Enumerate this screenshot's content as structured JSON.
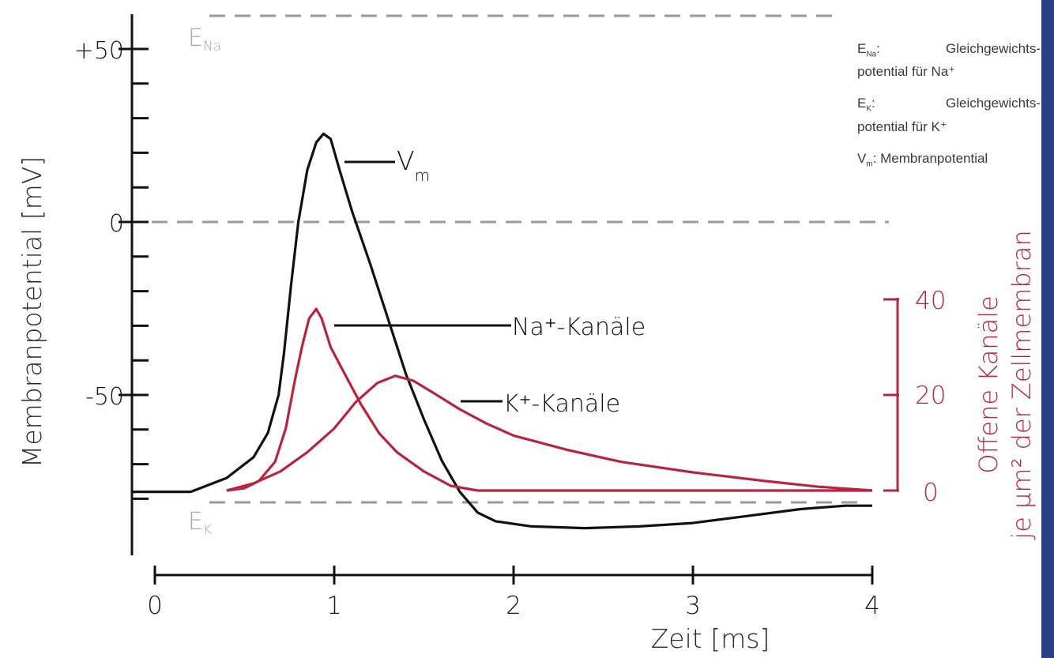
{
  "chart_data": {
    "type": "line",
    "xlabel": "Zeit [ms]",
    "ylabel": "Membranpotential [mV]",
    "y2label_line1": "Offene Kanäle",
    "y2label_line2": "je µm² der Zellmembran",
    "x_ticks": [
      "0",
      "1",
      "2",
      "3",
      "4"
    ],
    "y_ticks": [
      "+50",
      "0",
      "-50"
    ],
    "y2_ticks": [
      "40",
      "20",
      "0"
    ],
    "xlim": [
      0,
      4
    ],
    "ylim": [
      -95,
      60
    ],
    "y2lim": [
      0,
      40
    ],
    "reference_lines": [
      {
        "name": "E_Na",
        "label_main": "E",
        "label_sub": "Na",
        "value": 59
      },
      {
        "name": "zero",
        "value": 0
      },
      {
        "name": "E_K",
        "label_main": "E",
        "label_sub": "K",
        "value": -81
      }
    ],
    "series": [
      {
        "name": "Vm",
        "label_main": "V",
        "label_sub": "m",
        "axis": "left",
        "color": "#111111",
        "points": [
          [
            -0.13,
            -78
          ],
          [
            0.2,
            -78
          ],
          [
            0.4,
            -74
          ],
          [
            0.55,
            -68
          ],
          [
            0.63,
            -61
          ],
          [
            0.69,
            -50
          ],
          [
            0.72,
            -38
          ],
          [
            0.76,
            -18
          ],
          [
            0.8,
            0
          ],
          [
            0.85,
            15
          ],
          [
            0.9,
            23
          ],
          [
            0.94,
            25.5
          ],
          [
            0.98,
            24
          ],
          [
            1.03,
            15
          ],
          [
            1.1,
            3
          ],
          [
            1.2,
            -12
          ],
          [
            1.3,
            -28
          ],
          [
            1.4,
            -44
          ],
          [
            1.5,
            -57
          ],
          [
            1.6,
            -69
          ],
          [
            1.7,
            -78
          ],
          [
            1.8,
            -84
          ],
          [
            1.9,
            -86.5
          ],
          [
            2.1,
            -88
          ],
          [
            2.4,
            -88.5
          ],
          [
            2.7,
            -88
          ],
          [
            3.0,
            -87
          ],
          [
            3.3,
            -85
          ],
          [
            3.6,
            -83
          ],
          [
            3.85,
            -82
          ],
          [
            4.0,
            -82
          ]
        ]
      },
      {
        "name": "Na-Kanäle",
        "label": "Na⁺-Kanäle",
        "axis": "right",
        "color": "#b8243f",
        "points": [
          [
            0.4,
            0
          ],
          [
            0.5,
            0.5
          ],
          [
            0.58,
            2
          ],
          [
            0.67,
            6
          ],
          [
            0.73,
            13
          ],
          [
            0.78,
            23
          ],
          [
            0.82,
            30
          ],
          [
            0.86,
            36
          ],
          [
            0.9,
            38
          ],
          [
            0.93,
            36
          ],
          [
            0.98,
            30
          ],
          [
            1.05,
            25
          ],
          [
            1.15,
            18
          ],
          [
            1.25,
            12
          ],
          [
            1.35,
            8
          ],
          [
            1.5,
            4
          ],
          [
            1.65,
            1
          ],
          [
            1.8,
            0
          ],
          [
            2.5,
            0
          ],
          [
            4.0,
            0
          ]
        ]
      },
      {
        "name": "K-Kanäle",
        "label": "K⁺-Kanäle",
        "axis": "right",
        "color": "#b8243f",
        "points": [
          [
            0.4,
            0
          ],
          [
            0.55,
            1.5
          ],
          [
            0.7,
            4
          ],
          [
            0.85,
            8
          ],
          [
            1.0,
            13
          ],
          [
            1.12,
            18.5
          ],
          [
            1.24,
            22.5
          ],
          [
            1.34,
            24
          ],
          [
            1.44,
            23
          ],
          [
            1.55,
            20.5
          ],
          [
            1.7,
            17
          ],
          [
            1.85,
            14
          ],
          [
            2.0,
            11.5
          ],
          [
            2.3,
            8.5
          ],
          [
            2.6,
            6
          ],
          [
            3.0,
            3.8
          ],
          [
            3.4,
            2
          ],
          [
            3.7,
            0.8
          ],
          [
            4.0,
            0
          ]
        ]
      }
    ]
  },
  "legend": {
    "ena_main": "E",
    "ena_sub": "Na",
    "ena_sep": ":",
    "ena_text1": "Gleichgewichts-",
    "ena_text2": "potential für Na⁺",
    "ek_main": "E",
    "ek_sub": "K",
    "ek_sep": ":",
    "ek_text1": "Gleichgewichts-",
    "ek_text2": "potential für K⁺",
    "vm_main": "V",
    "vm_sub": "m",
    "vm_text": ": Membranpotential"
  }
}
